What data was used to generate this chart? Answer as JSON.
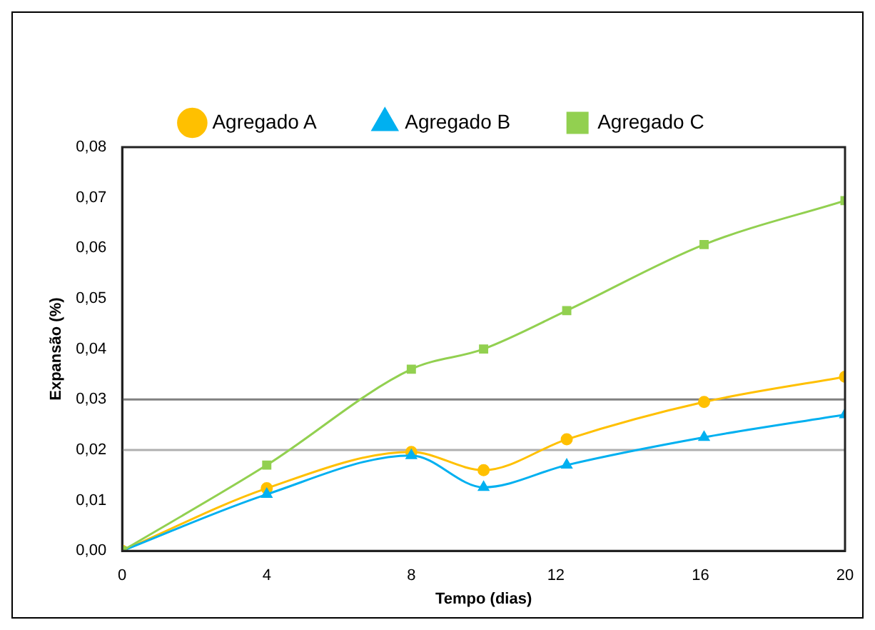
{
  "chart_data": {
    "type": "line",
    "xlabel": "Tempo (dias)",
    "ylabel": "Expansão (%)",
    "xlim": [
      0,
      20
    ],
    "xticks": [
      0,
      4,
      8,
      12,
      16,
      20
    ],
    "ylim": [
      0,
      0.08
    ],
    "yticks": [
      {
        "value": 0,
        "label": "0,00"
      },
      {
        "value": 0.01,
        "label": "0,01"
      },
      {
        "value": 0.02,
        "label": "0,02"
      },
      {
        "value": 0.03,
        "label": "0,03"
      },
      {
        "value": 0.04,
        "label": "0,04"
      },
      {
        "value": 0.05,
        "label": "0,05"
      },
      {
        "value": 0.06,
        "label": "0,06"
      },
      {
        "value": 0.07,
        "label": "0,07"
      },
      {
        "value": 0.08,
        "label": "0,08"
      }
    ],
    "x": [
      0,
      4,
      8,
      10,
      12.3,
      16.1,
      20
    ],
    "series": [
      {
        "name": "Agregado A",
        "color": "#ffc000",
        "marker": "circle",
        "values": [
          0,
          0.0124,
          0.0196,
          0.016,
          0.0221,
          0.0295,
          0.0345
        ]
      },
      {
        "name": "Agregado B",
        "color": "#00b0f0",
        "marker": "triangle",
        "values": [
          0,
          0.0112,
          0.0189,
          0.0126,
          0.017,
          0.0225,
          0.027
        ]
      },
      {
        "name": "Agregado C",
        "color": "#92d050",
        "marker": "square",
        "values": [
          0,
          0.017,
          0.036,
          0.04,
          0.0476,
          0.0607,
          0.0694
        ]
      }
    ],
    "ref_lines": [
      {
        "axis": "y",
        "value": 0.02,
        "color": "#b0b0b0"
      },
      {
        "axis": "y",
        "value": 0.03,
        "color": "#808080"
      }
    ],
    "grid": false,
    "legend": "top",
    "line_style": "solid"
  }
}
